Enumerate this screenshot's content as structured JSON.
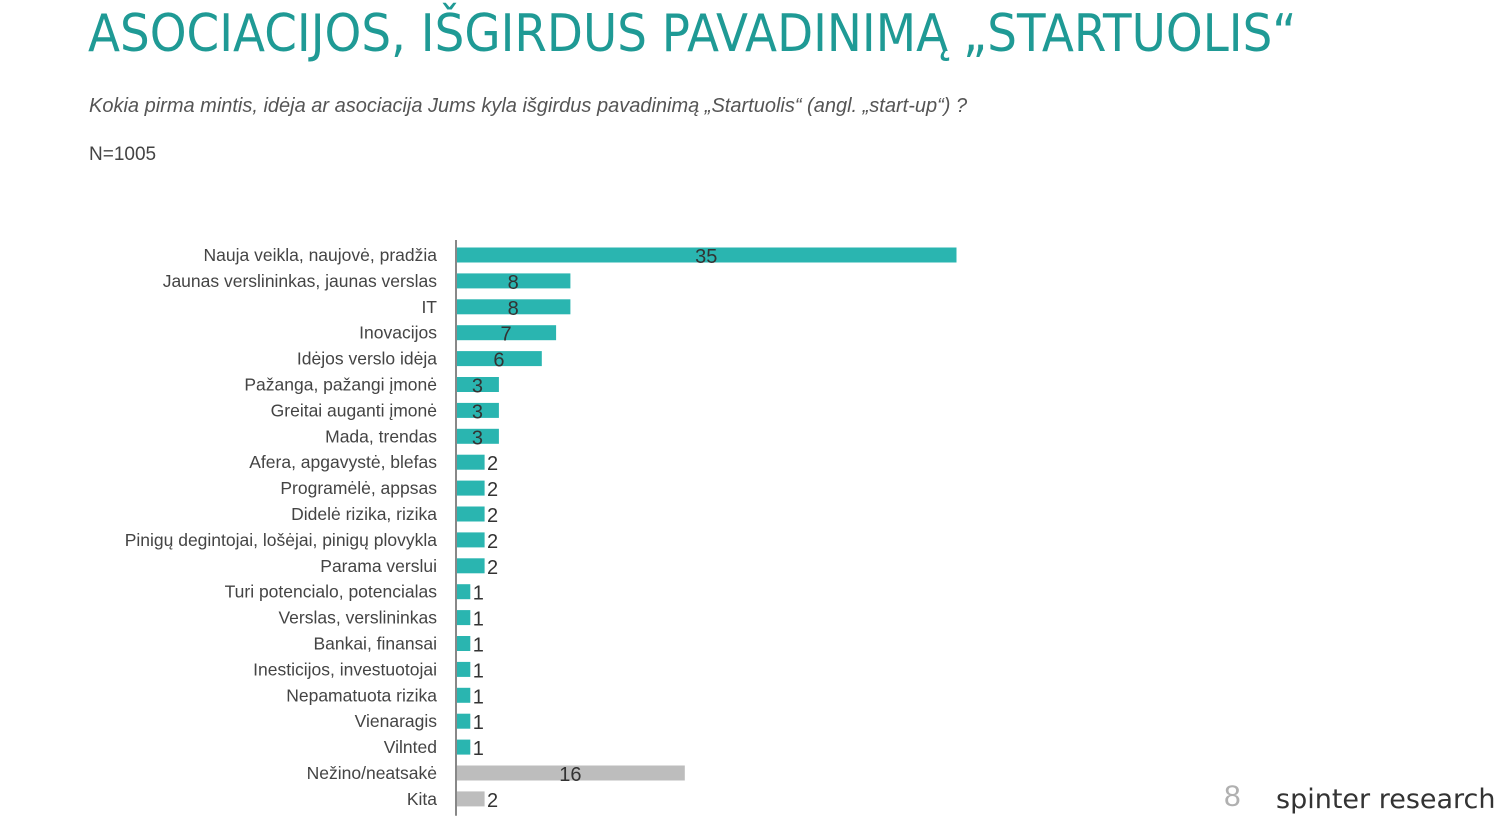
{
  "header": {
    "title": "ASOCIACIJOS, IŠGIRDUS PAVADINIMĄ „STARTUOLIS“",
    "question": "Kokia pirma mintis, idėja ar asociacija Jums kyla išgirdus pavadinimą „Startuolis“ (angl. „start-up“) ?",
    "sample": "N=1005"
  },
  "footer": {
    "page_number": "8",
    "brand": "spinter research"
  },
  "colors": {
    "title": "#1f9a95",
    "bar_main": "#2ab5b0",
    "bar_other": "#bdbdbd",
    "axis": "#888888"
  },
  "chart_data": {
    "type": "bar",
    "orientation": "horizontal",
    "categories": [
      "Nauja veikla, naujovė, pradžia",
      "Jaunas verslininkas, jaunas verslas",
      "IT",
      "Inovacijos",
      "Idėjos verslo idėja",
      "Pažanga, pažangi įmonė",
      "Greitai auganti įmonė",
      "Mada, trendas",
      "Afera, apgavystė, blefas",
      "Programėlė, appsas",
      "Didelė rizika, rizika",
      "Pinigų degintojai, lošėjai, pinigų plovykla",
      "Parama verslui",
      "Turi potencialo, potencialas",
      "Verslas, verslininkas",
      "Bankai, finansai",
      "Inesticijos, investuotojai",
      "Nepamatuota rizika",
      "Vienaragis",
      "Vilnted",
      "Nežino/neatsakė",
      "Kita"
    ],
    "values": [
      35,
      8,
      8,
      7,
      6,
      3,
      3,
      3,
      2,
      2,
      2,
      2,
      2,
      1,
      1,
      1,
      1,
      1,
      1,
      1,
      16,
      2
    ],
    "value_labels": [
      "35",
      "8",
      "8",
      "7",
      "6",
      "3",
      "3",
      "3",
      "2",
      "2",
      "2",
      "2",
      "2",
      "1",
      "1",
      "1",
      "1",
      "1",
      "1",
      "1",
      "16",
      "2"
    ],
    "muted_categories": [
      "Nežino/neatsakė",
      "Kita"
    ],
    "xlim": [
      0,
      35
    ],
    "grid": false,
    "legend": "none"
  }
}
